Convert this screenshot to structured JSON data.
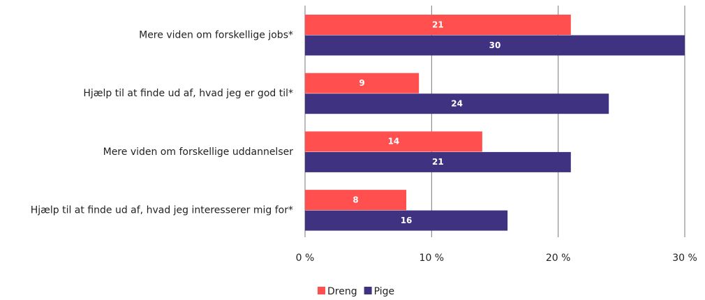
{
  "chart_data": {
    "type": "hbar",
    "categories": [
      "Mere viden om forskellige jobs*",
      "Hjælp til at finde ud af, hvad jeg er god til*",
      "Mere viden om forskellige uddannelser",
      "Hjælp til at finde ud af, hvad jeg interesserer mig for*"
    ],
    "series": [
      {
        "name": "Dreng",
        "color": "#ff4f4f",
        "values": [
          21,
          9,
          14,
          8
        ]
      },
      {
        "name": "Pige",
        "color": "#3f3381",
        "values": [
          30,
          24,
          21,
          16
        ]
      }
    ],
    "xlim": [
      0,
      30
    ],
    "xticks": [
      {
        "value": 0,
        "label": "0 %"
      },
      {
        "value": 10,
        "label": "10 %"
      },
      {
        "value": 20,
        "label": "20 %"
      },
      {
        "value": 30,
        "label": "30 %"
      }
    ],
    "grid": true,
    "legend": "bottom"
  }
}
